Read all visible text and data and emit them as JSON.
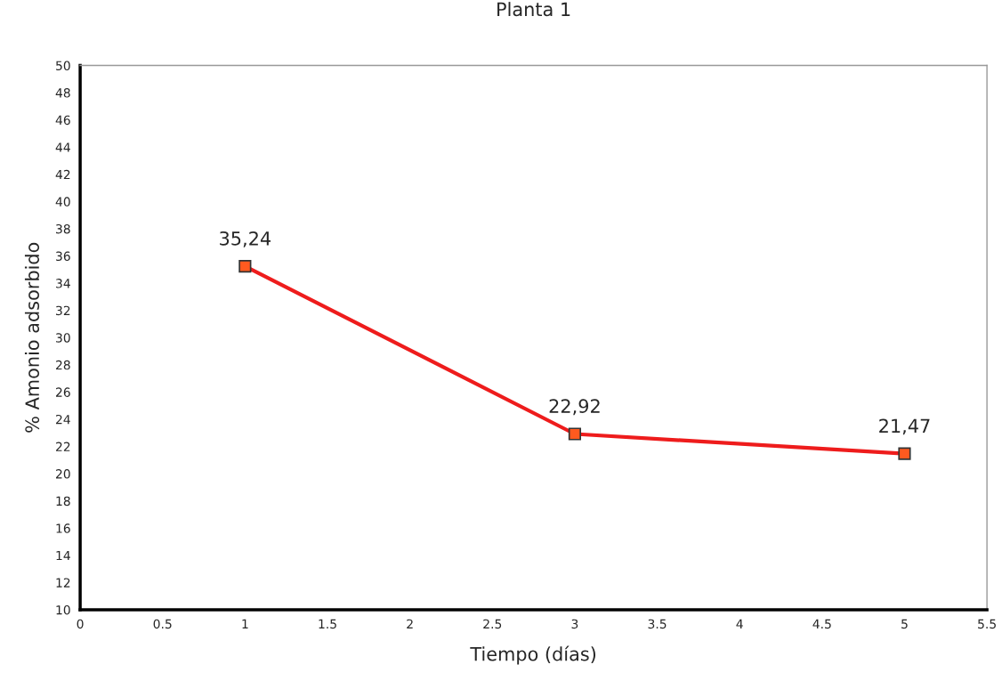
{
  "chart_data": {
    "type": "line",
    "title": "Planta 1",
    "xlabel": "Tiempo (días)",
    "ylabel": "% Amonio adsorbido",
    "x": [
      1,
      3,
      5
    ],
    "series": [
      {
        "color": "#ee1c1c",
        "values": [
          35.24,
          22.92,
          21.47
        ],
        "value_labels": [
          "35,24",
          "22,92",
          "21,47"
        ]
      }
    ],
    "xlim": [
      0,
      5.5
    ],
    "xticks": [
      0,
      0.5,
      1,
      1.5,
      2,
      2.5,
      3,
      3.5,
      4,
      4.5,
      5,
      5.5
    ],
    "ylim": [
      10,
      50
    ],
    "yticks": [
      10,
      12,
      14,
      16,
      18,
      20,
      22,
      24,
      26,
      28,
      30,
      32,
      34,
      36,
      38,
      40,
      42,
      44,
      46,
      48,
      50
    ],
    "grid": false,
    "legend": false,
    "marker": "square",
    "line_style": "solid"
  }
}
